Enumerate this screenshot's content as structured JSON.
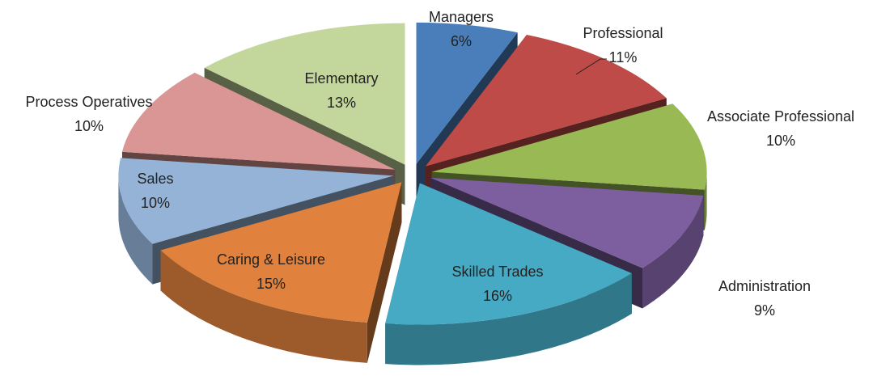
{
  "chart_data": {
    "type": "pie3d",
    "categories": [
      "Managers",
      "Professional",
      "Associate Professional",
      "Administration",
      "Skilled Trades",
      "Caring & Leisure",
      "Sales",
      "Process Operatives",
      "Elementary"
    ],
    "values": [
      6,
      11,
      10,
      9,
      16,
      15,
      10,
      10,
      13
    ],
    "value_labels": [
      "6%",
      "11%",
      "10%",
      "9%",
      "16%",
      "15%",
      "10%",
      "10%",
      "13%"
    ],
    "colors": [
      "#4a7ebb",
      "#be4b48",
      "#98b954",
      "#7d5fa0",
      "#46aac5",
      "#e0823d",
      "#95b3d7",
      "#d99694",
      "#c3d69b"
    ]
  }
}
